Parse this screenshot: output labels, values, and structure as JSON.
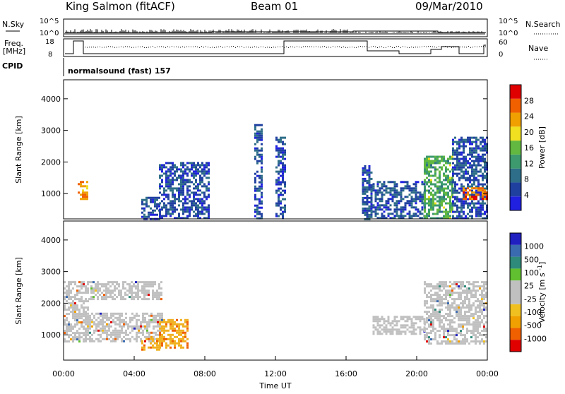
{
  "header": {
    "station": "King Salmon (fitACF)",
    "beam": "Beam 01",
    "date": "09/Mar/2010"
  },
  "strip_panels": {
    "nsky": {
      "left_label": "N.Sky",
      "right_label": "N.Search",
      "left_ticks": [
        "10^5",
        "10^0"
      ],
      "right_ticks": [
        "10^5",
        "10^0"
      ]
    },
    "freq": {
      "left_label_line1": "Freq.",
      "left_label_line2": "[MHz]",
      "right_label": "Nave",
      "left_ticks": [
        "18",
        "8"
      ],
      "right_ticks": [
        "60",
        "0"
      ]
    },
    "cpid": {
      "label": "CPID",
      "text": "normalsound (fast) 157"
    }
  },
  "colors": {
    "power": [
      "#2020e0",
      "#2040a0",
      "#2e6e88",
      "#3c9a6e",
      "#62b840",
      "#f0e020",
      "#f0a000",
      "#f06000",
      "#e00000"
    ],
    "velocity": [
      "#e00000",
      "#f06000",
      "#f0a000",
      "#f0c020",
      "#c0c0c0",
      "#c0c0c0",
      "#60c030",
      "#2e8a7a",
      "#3a6ab0",
      "#2020c0"
    ]
  },
  "chart_data": [
    {
      "type": "heatmap",
      "name": "power",
      "xlabel": "",
      "ylabel": "Slant Range [km]",
      "ylim": [
        200,
        4600
      ],
      "xlim_hours": [
        0,
        24
      ],
      "yticks": [
        "1000",
        "2000",
        "3000",
        "4000"
      ],
      "colorbar": {
        "label": "Power [dB]",
        "range": [
          0,
          32
        ],
        "ticks": [
          "4",
          "8",
          "12",
          "16",
          "20",
          "24",
          "28"
        ]
      },
      "bands": [
        {
          "t0": 0.8,
          "t1": 1.4,
          "r0": 800,
          "r1": 1400,
          "value": 24
        },
        {
          "t0": 4.4,
          "t1": 5.4,
          "r0": 200,
          "r1": 900,
          "value": 6
        },
        {
          "t0": 5.4,
          "t1": 8.2,
          "r0": 200,
          "r1": 2000,
          "value": 6
        },
        {
          "t0": 10.8,
          "t1": 11.2,
          "r0": 200,
          "r1": 3200,
          "value": 6
        },
        {
          "t0": 12.0,
          "t1": 12.5,
          "r0": 200,
          "r1": 2800,
          "value": 6
        },
        {
          "t0": 16.9,
          "t1": 17.5,
          "r0": 200,
          "r1": 1900,
          "value": 6
        },
        {
          "t0": 17.5,
          "t1": 20.4,
          "r0": 200,
          "r1": 1400,
          "value": 6
        },
        {
          "t0": 20.4,
          "t1": 22.0,
          "r0": 200,
          "r1": 2200,
          "value": 14
        },
        {
          "t0": 22.0,
          "t1": 24.0,
          "r0": 200,
          "r1": 2800,
          "value": 6
        },
        {
          "t0": 22.6,
          "t1": 24.0,
          "r0": 800,
          "r1": 1200,
          "value": 26
        }
      ]
    },
    {
      "type": "heatmap",
      "name": "velocity",
      "xlabel": "Time UT",
      "ylabel": "Slant Range [km]",
      "ylim": [
        200,
        4600
      ],
      "xlim_hours": [
        0,
        24
      ],
      "xticks": [
        "00:00",
        "04:00",
        "08:00",
        "12:00",
        "16:00",
        "20:00",
        "00:00"
      ],
      "yticks": [
        "1000",
        "2000",
        "3000",
        "4000"
      ],
      "colorbar": {
        "label": "Velocity [m s^-1]",
        "ticks": [
          "1000",
          "500",
          "100",
          "25",
          "-25",
          "-100",
          "-500",
          "-1000"
        ]
      },
      "bands": [
        {
          "t0": 0.0,
          "t1": 1.4,
          "r0": 800,
          "r1": 2700,
          "value": 0
        },
        {
          "t0": 1.2,
          "t1": 5.6,
          "r0": 800,
          "r1": 1700,
          "value": 0
        },
        {
          "t0": 1.4,
          "t1": 5.6,
          "r0": 2100,
          "r1": 2700,
          "value": 0
        },
        {
          "t0": 4.4,
          "t1": 5.4,
          "r0": 500,
          "r1": 900,
          "value": -100
        },
        {
          "t0": 5.4,
          "t1": 7.0,
          "r0": 600,
          "r1": 1500,
          "value": -100
        },
        {
          "t0": 17.5,
          "t1": 20.4,
          "r0": 1000,
          "r1": 1600,
          "value": 0
        },
        {
          "t0": 20.4,
          "t1": 24.0,
          "r0": 700,
          "r1": 2700,
          "value": 0
        }
      ]
    }
  ]
}
